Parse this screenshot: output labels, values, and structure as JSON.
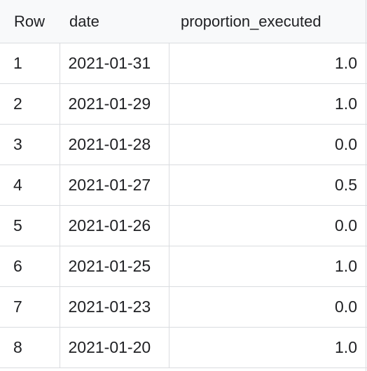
{
  "table": {
    "columns": [
      "Row",
      "date",
      "proportion_executed"
    ],
    "rows": [
      {
        "row": "1",
        "date": "2021-01-31",
        "proportion_executed": "1.0"
      },
      {
        "row": "2",
        "date": "2021-01-29",
        "proportion_executed": "1.0"
      },
      {
        "row": "3",
        "date": "2021-01-28",
        "proportion_executed": "0.0"
      },
      {
        "row": "4",
        "date": "2021-01-27",
        "proportion_executed": "0.5"
      },
      {
        "row": "5",
        "date": "2021-01-26",
        "proportion_executed": "0.0"
      },
      {
        "row": "6",
        "date": "2021-01-25",
        "proportion_executed": "1.0"
      },
      {
        "row": "7",
        "date": "2021-01-23",
        "proportion_executed": "0.0"
      },
      {
        "row": "8",
        "date": "2021-01-20",
        "proportion_executed": "1.0"
      }
    ]
  }
}
